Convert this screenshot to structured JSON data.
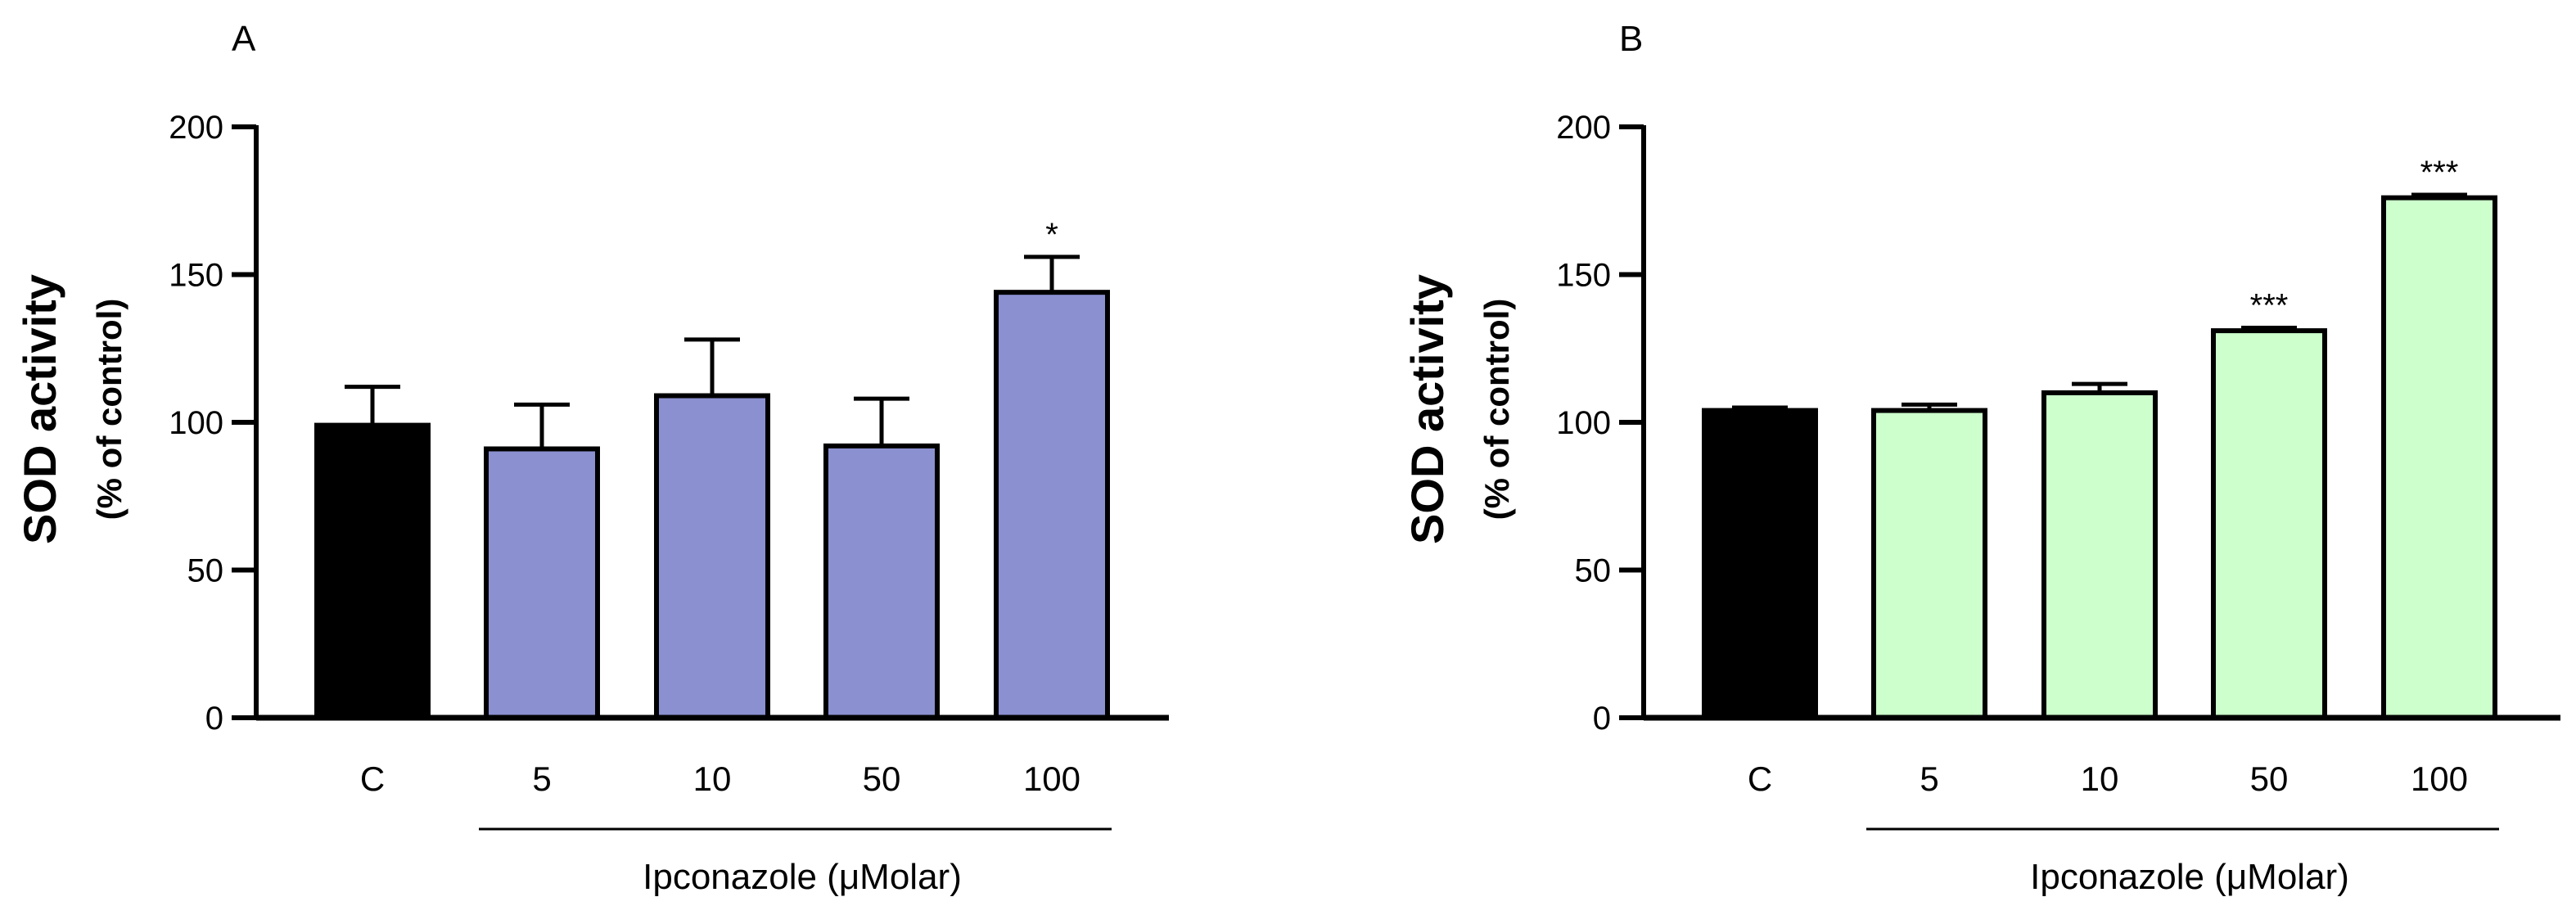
{
  "chart_data": [
    {
      "panel": "A",
      "type": "bar",
      "categories": [
        "C",
        "5",
        "10",
        "50",
        "100"
      ],
      "values": [
        99,
        91,
        109,
        92,
        144
      ],
      "errors": [
        13,
        15,
        19,
        16,
        12
      ],
      "significance": [
        "",
        "",
        "",
        "",
        "*"
      ],
      "bar_colors": [
        "#000000",
        "#8b90d1",
        "#8b90d1",
        "#8b90d1",
        "#8b90d1"
      ],
      "ylabel": "SOD activity",
      "ylabel_sub": "(% of control)",
      "xlabel": "Ipconazole (μMolar)",
      "ylim": [
        0,
        200
      ],
      "yticks": [
        0,
        50,
        100,
        150,
        200
      ],
      "grid": false
    },
    {
      "panel": "B",
      "type": "bar",
      "categories": [
        "C",
        "5",
        "10",
        "50",
        "100"
      ],
      "values": [
        104,
        104,
        110,
        131,
        176
      ],
      "errors": [
        1,
        2,
        3,
        1,
        1
      ],
      "significance": [
        "",
        "",
        "",
        "***",
        "***"
      ],
      "bar_colors": [
        "#000000",
        "#ccffcc",
        "#ccffcc",
        "#ccffcc",
        "#ccffcc"
      ],
      "ylabel": "SOD activity",
      "ylabel_sub": "(% of control)",
      "xlabel": "Ipconazole (μMolar)",
      "ylim": [
        0,
        200
      ],
      "yticks": [
        0,
        50,
        100,
        150,
        200
      ],
      "grid": false
    }
  ]
}
